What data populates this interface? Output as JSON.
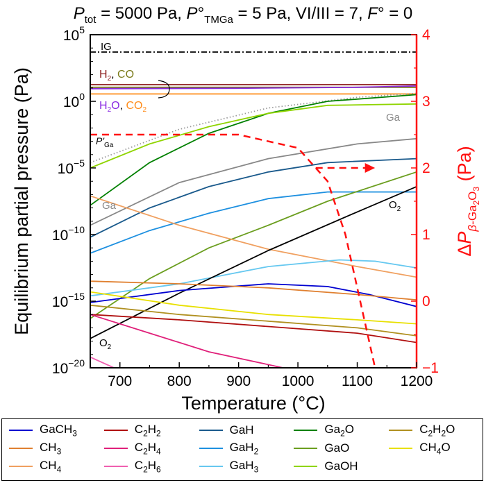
{
  "chart_data": {
    "type": "line",
    "title": "P_tot = 5000 Pa, P°_TMGa = 5 Pa, VI/III = 7, F° = 0",
    "xlabel": "Temperature (°C)",
    "ylabel": "Equilibrium partial pressure (Pa)",
    "y2label": "ΔP_β-Ga2O3 (Pa)",
    "xlim": [
      650,
      1200
    ],
    "ylim_log10": [
      -20,
      5
    ],
    "y2lim": [
      -1,
      4
    ],
    "y_scale": "log",
    "x_ticks": [
      "700",
      "800",
      "900",
      "1000",
      "1100",
      "1200"
    ],
    "y_ticks": [
      {
        "base": "10",
        "exp": "5",
        "v": 5
      },
      {
        "base": "10",
        "exp": "0",
        "v": 0
      },
      {
        "base": "10",
        "exp": "−5",
        "v": -5
      },
      {
        "base": "10",
        "exp": "−10",
        "v": -10
      },
      {
        "base": "10",
        "exp": "−15",
        "v": -15
      },
      {
        "base": "10",
        "exp": "−20",
        "v": -20
      }
    ],
    "y2_ticks": [
      "4",
      "3",
      "2",
      "1",
      "0",
      "−1"
    ],
    "legend_position": "bottom",
    "annotations": {
      "ig": "IG",
      "h2": "H",
      "h2_sub": "2",
      "co": "CO",
      "h2o": "H",
      "h2o_sub": "2",
      "h2o_end": "O",
      "co2": "CO",
      "co2_sub": "2",
      "pga": "P'",
      "pga_sub": "Ga",
      "ga_upper": "Ga",
      "ga_lower": "Ga",
      "o2_upper": "O",
      "o2_upper_sub": "2",
      "o2_lower": "O",
      "o2_lower_sub": "2",
      "comma": ","
    },
    "series": [
      {
        "name": "IG",
        "color": "#000000",
        "dash": "dashdot",
        "x": [
          650,
          1200
        ],
        "log10_y": [
          3.7,
          3.7
        ]
      },
      {
        "name": "H2",
        "color": "#8b1a1a",
        "x": [
          650,
          1200
        ],
        "log10_y": [
          1.25,
          1.25
        ]
      },
      {
        "name": "CO",
        "color": "#7a7a1a",
        "x": [
          650,
          1200
        ],
        "log10_y": [
          1.05,
          1.05
        ]
      },
      {
        "name": "H2O",
        "color": "#8a2be2",
        "x": [
          650,
          900,
          1100,
          1200
        ],
        "log10_y": [
          0.95,
          0.98,
          1.05,
          1.15
        ]
      },
      {
        "name": "CO2",
        "color": "#ff8c1a",
        "x": [
          650,
          1200
        ],
        "log10_y": [
          0.55,
          0.55
        ]
      },
      {
        "name": "P'Ga",
        "color": "#999999",
        "dash": "dot",
        "x": [
          650,
          800,
          950,
          1100,
          1200
        ],
        "log10_y": [
          -4.6,
          -2.1,
          -0.5,
          0.3,
          0.6
        ]
      },
      {
        "name": "Ga upper",
        "color": "#888888",
        "x": [
          650,
          800,
          950,
          1100,
          1200
        ],
        "log10_y": [
          -9.3,
          -6.1,
          -4.3,
          -3.2,
          -2.8
        ]
      },
      {
        "name": "Ga2O",
        "color": "#008000",
        "x": [
          650,
          750,
          850,
          950,
          1050,
          1200
        ],
        "log10_y": [
          -7.8,
          -4.6,
          -2.4,
          -0.9,
          0.0,
          0.5
        ]
      },
      {
        "name": "GaOH",
        "color": "#8fd400",
        "x": [
          650,
          750,
          850,
          950,
          1050,
          1200
        ],
        "log10_y": [
          -5.0,
          -3.2,
          -1.9,
          -0.9,
          -0.3,
          -0.2
        ]
      },
      {
        "name": "GaH",
        "color": "#1a5a8c",
        "x": [
          650,
          750,
          850,
          950,
          1050,
          1200
        ],
        "log10_y": [
          -10.2,
          -8.0,
          -6.4,
          -5.3,
          -4.6,
          -4.3
        ]
      },
      {
        "name": "GaH2",
        "color": "#1e90e0",
        "x": [
          650,
          750,
          850,
          950,
          1050,
          1120,
          1200
        ],
        "log10_y": [
          -11.4,
          -9.7,
          -8.4,
          -7.3,
          -6.8,
          -6.8,
          -6.8
        ]
      },
      {
        "name": "GaO",
        "color": "#6b9e1f",
        "x": [
          650,
          750,
          850,
          950,
          1050,
          1200
        ],
        "log10_y": [
          -16.3,
          -13.3,
          -11.0,
          -9.3,
          -7.5,
          -5.3
        ]
      },
      {
        "name": "CH4",
        "color": "#f0a060",
        "x": [
          650,
          800,
          950,
          1100,
          1200
        ],
        "log10_y": [
          -7.1,
          -9.3,
          -11.1,
          -12.4,
          -13.2
        ]
      },
      {
        "name": "GaH3",
        "color": "#66c8f0",
        "x": [
          650,
          800,
          950,
          1070,
          1130,
          1200
        ],
        "log10_y": [
          -14.6,
          -13.7,
          -12.4,
          -11.9,
          -12.0,
          -12.5
        ]
      },
      {
        "name": "O2",
        "color": "#000000",
        "x": [
          650,
          800,
          950,
          1100,
          1200
        ],
        "log10_y": [
          -17.8,
          -14.4,
          -11.2,
          -8.3,
          -6.4
        ]
      },
      {
        "name": "GaCH3",
        "color": "#0000d0",
        "x": [
          650,
          800,
          950,
          1050,
          1120,
          1200
        ],
        "log10_y": [
          -15.1,
          -14.2,
          -13.7,
          -13.9,
          -14.5,
          -15.4
        ]
      },
      {
        "name": "CH3",
        "color": "#e08030",
        "x": [
          650,
          800,
          950,
          1100,
          1200
        ],
        "log10_y": [
          -13.5,
          -13.7,
          -14.0,
          -14.5,
          -14.9
        ]
      },
      {
        "name": "CH4O",
        "color": "#e8e000",
        "x": [
          650,
          800,
          950,
          1100,
          1200
        ],
        "log10_y": [
          -14.3,
          -15.3,
          -16.0,
          -16.4,
          -16.7
        ]
      },
      {
        "name": "C2H2O",
        "color": "#b09020",
        "x": [
          650,
          800,
          950,
          1100,
          1200
        ],
        "log10_y": [
          -15.3,
          -16.0,
          -16.5,
          -17.0,
          -17.6
        ]
      },
      {
        "name": "C2H2",
        "color": "#b01010",
        "x": [
          650,
          800,
          950,
          1100,
          1200
        ],
        "log10_y": [
          -16.0,
          -16.4,
          -16.9,
          -17.4,
          -18.1
        ]
      },
      {
        "name": "C2H4",
        "color": "#e0207a",
        "x": [
          650,
          750,
          850,
          975
        ],
        "log10_y": [
          -16.0,
          -17.4,
          -18.8,
          -20.0
        ]
      },
      {
        "name": "C2H6",
        "color": "#f060b0",
        "x": [
          650,
          690
        ],
        "log10_y": [
          -19.2,
          -20.0
        ]
      },
      {
        "name": "ΔP β-Ga2O3",
        "color": "#ff1010",
        "dash": "dash",
        "axis": "right",
        "x": [
          650,
          900,
          1000,
          1050,
          1080,
          1110,
          1130
        ],
        "y2": [
          2.5,
          2.5,
          2.3,
          1.8,
          1.0,
          -0.2,
          -1.0
        ]
      }
    ],
    "legend": [
      {
        "label": "GaCH",
        "sub": "3",
        "tail": "",
        "color": "#0000d0"
      },
      {
        "label": "C",
        "sub": "2",
        "tail": "H",
        "sub2": "2",
        "color": "#b01010"
      },
      {
        "label": "GaH",
        "sub": "",
        "tail": "",
        "color": "#1a5a8c"
      },
      {
        "label": "Ga",
        "sub": "2",
        "tail": "O",
        "color": "#008000"
      },
      {
        "label": "C",
        "sub": "2",
        "tail": "H",
        "sub2": "2",
        "tail2": "O",
        "color": "#b09020"
      },
      {
        "label": "CH",
        "sub": "3",
        "tail": "",
        "color": "#e08030"
      },
      {
        "label": "C",
        "sub": "2",
        "tail": "H",
        "sub2": "4",
        "color": "#e0207a"
      },
      {
        "label": "GaH",
        "sub": "2",
        "tail": "",
        "color": "#1e90e0"
      },
      {
        "label": "GaO",
        "sub": "",
        "tail": "",
        "color": "#6b9e1f"
      },
      {
        "label": "CH",
        "sub": "4",
        "tail": "O",
        "color": "#e8e000"
      },
      {
        "label": "CH",
        "sub": "4",
        "tail": "",
        "color": "#f0a060"
      },
      {
        "label": "C",
        "sub": "2",
        "tail": "H",
        "sub2": "6",
        "color": "#f060b0"
      },
      {
        "label": "GaH",
        "sub": "3",
        "tail": "",
        "color": "#66c8f0"
      },
      {
        "label": "GaOH",
        "sub": "",
        "tail": "",
        "color": "#8fd400"
      }
    ]
  }
}
